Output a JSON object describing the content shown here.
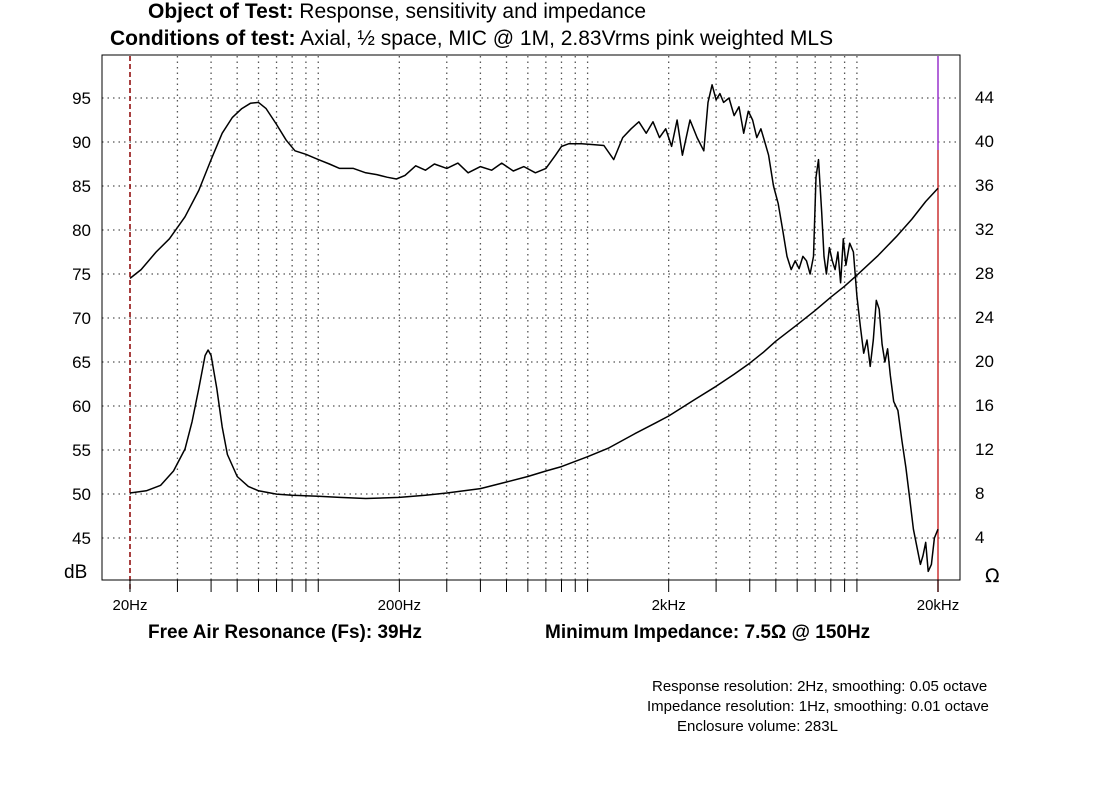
{
  "header": {
    "object_label": "Object of Test:",
    "object_value": "Response, sensitivity and impedance",
    "conditions_label": "Conditions of test:",
    "conditions_value": "Axial, ½ space, MIC @ 1M, 2.83Vrms pink weighted MLS"
  },
  "footer": {
    "fs_text": "Free Air Resonance (Fs): 39Hz",
    "min_imp_text": "Minimum Impedance: 7.5Ω @ 150Hz"
  },
  "notes": {
    "line1": "Response resolution: 2Hz, smoothing: 0.05 octave",
    "line2": "Impedance resolution: 1Hz, smoothing: 0.01 octave",
    "line3": "Enclosure volume: 283L"
  },
  "colors": {
    "marker_left": "#8b0000",
    "marker_right": "#cc3333",
    "marker_right_top": "#9933cc",
    "grid": "#555555",
    "trace": "#000000"
  },
  "chart_data": {
    "type": "line",
    "x_scale": "log",
    "xlim": [
      20,
      20000
    ],
    "x_tick_labels": [
      {
        "x": 20,
        "label": "20Hz"
      },
      {
        "x": 200,
        "label": "200Hz"
      },
      {
        "x": 2000,
        "label": "2kHz"
      },
      {
        "x": 20000,
        "label": "20kHz"
      }
    ],
    "grid": true,
    "y_left": {
      "label": "dB",
      "lim": [
        41,
        100
      ],
      "ticks": [
        95,
        90,
        85,
        80,
        75,
        70,
        65,
        60,
        55,
        50,
        45
      ]
    },
    "y_right": {
      "label": "Ω",
      "lim": [
        0,
        48
      ],
      "ticks": [
        44,
        40,
        36,
        32,
        28,
        24,
        20,
        16,
        12,
        8,
        4
      ]
    },
    "series": [
      {
        "axis": "left",
        "unit": "dB",
        "points": [
          [
            20,
            74.5
          ],
          [
            22,
            75.5
          ],
          [
            25,
            77.5
          ],
          [
            28,
            79
          ],
          [
            32,
            81.5
          ],
          [
            36,
            84.5
          ],
          [
            40,
            88
          ],
          [
            44,
            91
          ],
          [
            48,
            92.8
          ],
          [
            52,
            93.8
          ],
          [
            56,
            94.4
          ],
          [
            60,
            94.5
          ],
          [
            64,
            93.8
          ],
          [
            70,
            92
          ],
          [
            76,
            90.2
          ],
          [
            82,
            89
          ],
          [
            90,
            88.6
          ],
          [
            100,
            88
          ],
          [
            110,
            87.5
          ],
          [
            120,
            87
          ],
          [
            135,
            87
          ],
          [
            150,
            86.5
          ],
          [
            165,
            86.3
          ],
          [
            180,
            86
          ],
          [
            195,
            85.8
          ],
          [
            210,
            86.2
          ],
          [
            230,
            87.3
          ],
          [
            250,
            86.8
          ],
          [
            270,
            87.5
          ],
          [
            300,
            87
          ],
          [
            330,
            87.6
          ],
          [
            360,
            86.5
          ],
          [
            400,
            87.2
          ],
          [
            440,
            86.8
          ],
          [
            480,
            87.6
          ],
          [
            530,
            86.7
          ],
          [
            580,
            87.2
          ],
          [
            640,
            86.5
          ],
          [
            700,
            87
          ],
          [
            760,
            88.5
          ],
          [
            800,
            89.5
          ],
          [
            850,
            89.8
          ],
          [
            950,
            89.8
          ],
          [
            1050,
            89.7
          ],
          [
            1150,
            89.6
          ],
          [
            1250,
            88
          ],
          [
            1350,
            90.5
          ],
          [
            1450,
            91.5
          ],
          [
            1550,
            92.3
          ],
          [
            1650,
            91
          ],
          [
            1750,
            92.3
          ],
          [
            1850,
            90.5
          ],
          [
            1950,
            91.5
          ],
          [
            2050,
            89.5
          ],
          [
            2150,
            92.5
          ],
          [
            2250,
            88.5
          ],
          [
            2400,
            92.5
          ],
          [
            2550,
            90.5
          ],
          [
            2700,
            89
          ],
          [
            2800,
            94.5
          ],
          [
            2900,
            96.5
          ],
          [
            3000,
            94.8
          ],
          [
            3100,
            95.5
          ],
          [
            3200,
            94.5
          ],
          [
            3350,
            95
          ],
          [
            3500,
            93
          ],
          [
            3650,
            94
          ],
          [
            3800,
            91
          ],
          [
            3950,
            93.5
          ],
          [
            4100,
            92.5
          ],
          [
            4250,
            90.5
          ],
          [
            4400,
            91.5
          ],
          [
            4550,
            90
          ],
          [
            4700,
            88.5
          ],
          [
            4900,
            85
          ],
          [
            5100,
            83
          ],
          [
            5300,
            80
          ],
          [
            5500,
            77
          ],
          [
            5700,
            75.5
          ],
          [
            5900,
            76.5
          ],
          [
            6100,
            75.6
          ],
          [
            6300,
            77
          ],
          [
            6500,
            76.5
          ],
          [
            6700,
            75
          ],
          [
            6900,
            77
          ],
          [
            7050,
            86
          ],
          [
            7200,
            88
          ],
          [
            7400,
            82
          ],
          [
            7550,
            77
          ],
          [
            7700,
            75
          ],
          [
            7900,
            78
          ],
          [
            8100,
            76.5
          ],
          [
            8300,
            75.5
          ],
          [
            8500,
            77.5
          ],
          [
            8700,
            74
          ],
          [
            8900,
            79
          ],
          [
            9100,
            76
          ],
          [
            9400,
            78.5
          ],
          [
            9700,
            77.5
          ],
          [
            10000,
            72.5
          ],
          [
            10300,
            69
          ],
          [
            10600,
            66
          ],
          [
            10900,
            67.5
          ],
          [
            11200,
            64.5
          ],
          [
            11500,
            67.5
          ],
          [
            11800,
            72
          ],
          [
            12100,
            71
          ],
          [
            12400,
            67
          ],
          [
            12700,
            65
          ],
          [
            13000,
            66.5
          ],
          [
            13300,
            63.5
          ],
          [
            13700,
            60.5
          ],
          [
            14200,
            59.5
          ],
          [
            14700,
            56
          ],
          [
            15200,
            53
          ],
          [
            15700,
            49.5
          ],
          [
            16200,
            46
          ],
          [
            16700,
            44
          ],
          [
            17200,
            42
          ],
          [
            17600,
            43
          ],
          [
            18000,
            44.5
          ],
          [
            18400,
            41.2
          ],
          [
            18900,
            42
          ],
          [
            19400,
            45
          ],
          [
            20000,
            46
          ]
        ]
      },
      {
        "axis": "right",
        "unit": "Ω",
        "points": [
          [
            20,
            8
          ],
          [
            23,
            8.2
          ],
          [
            26,
            8.7
          ],
          [
            29,
            10
          ],
          [
            32,
            12
          ],
          [
            34,
            14.5
          ],
          [
            36,
            17.5
          ],
          [
            38,
            20.5
          ],
          [
            39,
            21
          ],
          [
            40,
            20.5
          ],
          [
            42,
            17.5
          ],
          [
            44,
            14
          ],
          [
            46,
            11.5
          ],
          [
            50,
            9.5
          ],
          [
            55,
            8.6
          ],
          [
            60,
            8.2
          ],
          [
            70,
            7.9
          ],
          [
            80,
            7.8
          ],
          [
            100,
            7.7
          ],
          [
            120,
            7.6
          ],
          [
            150,
            7.5
          ],
          [
            200,
            7.6
          ],
          [
            250,
            7.8
          ],
          [
            300,
            8
          ],
          [
            400,
            8.4
          ],
          [
            500,
            9
          ],
          [
            600,
            9.5
          ],
          [
            700,
            10
          ],
          [
            800,
            10.4
          ],
          [
            1000,
            11.3
          ],
          [
            1200,
            12.1
          ],
          [
            1500,
            13.4
          ],
          [
            1800,
            14.4
          ],
          [
            2000,
            15
          ],
          [
            2500,
            16.5
          ],
          [
            3000,
            17.7
          ],
          [
            3500,
            18.8
          ],
          [
            4000,
            19.8
          ],
          [
            4500,
            20.8
          ],
          [
            5000,
            21.8
          ],
          [
            6000,
            23.3
          ],
          [
            7000,
            24.6
          ],
          [
            8000,
            25.8
          ],
          [
            9000,
            26.8
          ],
          [
            10000,
            27.8
          ],
          [
            12000,
            29.6
          ],
          [
            14000,
            31.3
          ],
          [
            16000,
            32.9
          ],
          [
            18000,
            34.5
          ],
          [
            20000,
            35.7
          ]
        ]
      }
    ]
  }
}
